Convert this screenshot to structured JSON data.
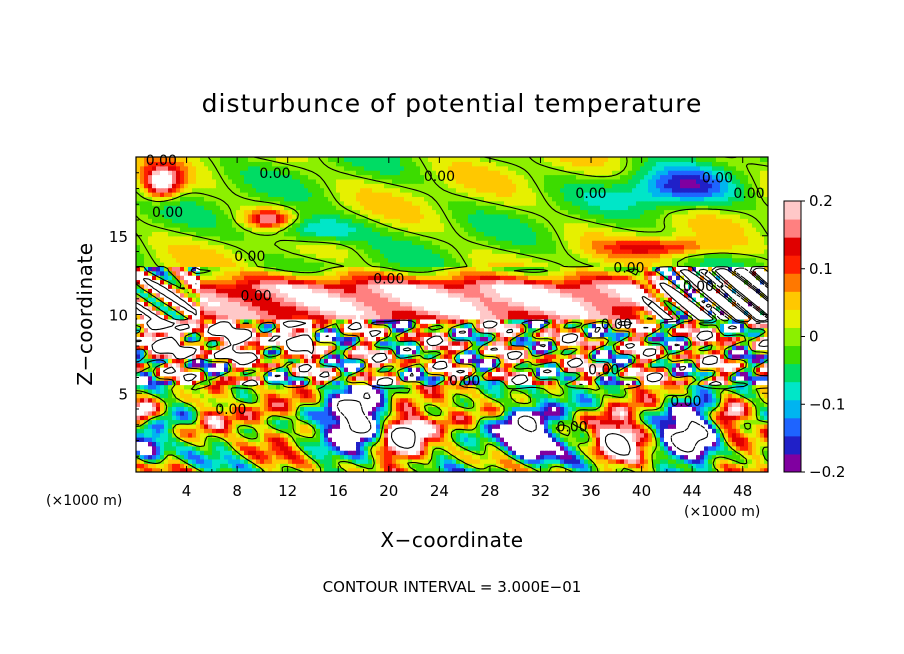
{
  "chart_data": {
    "type": "heatmap",
    "title": "disturbunce of potential temperature",
    "xlabel": "X−coordinate",
    "ylabel": "Z−coordinate",
    "x_unit": "(×1000 m)",
    "y_unit": "(×1000 m)",
    "xlim": [
      0,
      50
    ],
    "ylim": [
      0,
      20
    ],
    "x_ticks": [
      4,
      8,
      12,
      16,
      20,
      24,
      28,
      32,
      36,
      40,
      44,
      48
    ],
    "y_ticks": [
      5,
      10,
      15
    ],
    "colorbar": {
      "range": [
        -0.2,
        0.2
      ],
      "tick_values": [
        0.2,
        0.1,
        0,
        -0.1,
        -0.2
      ],
      "tick_labels": [
        "0.2",
        "0.1",
        "0",
        "−0.1",
        "−0.2"
      ],
      "colors": [
        "#8000a0",
        "#2020c8",
        "#1e64ff",
        "#00b4f0",
        "#00e6c8",
        "#00dc64",
        "#3cdc00",
        "#8cf000",
        "#e6f000",
        "#ffc800",
        "#ff7800",
        "#ff2000",
        "#e00000",
        "#ff8080",
        "#ffc8c8"
      ]
    },
    "contour_interval_text": "CONTOUR INTERVAL = 3.000E−01",
    "contour_label": "0.00",
    "contour_label_positions": [
      {
        "x": 2.0,
        "z": 19.8
      },
      {
        "x": 11.0,
        "z": 19.0
      },
      {
        "x": 24.0,
        "z": 18.8
      },
      {
        "x": 36.0,
        "z": 17.7
      },
      {
        "x": 46.0,
        "z": 18.7
      },
      {
        "x": 48.5,
        "z": 17.7
      },
      {
        "x": 2.5,
        "z": 16.5
      },
      {
        "x": 9.0,
        "z": 13.7
      },
      {
        "x": 20.0,
        "z": 12.3
      },
      {
        "x": 39.0,
        "z": 13.0
      },
      {
        "x": 44.5,
        "z": 11.8
      },
      {
        "x": 9.5,
        "z": 11.2
      },
      {
        "x": 38.0,
        "z": 9.4
      },
      {
        "x": 26.0,
        "z": 5.8
      },
      {
        "x": 37.0,
        "z": 6.5
      },
      {
        "x": 7.5,
        "z": 4.0
      },
      {
        "x": 43.5,
        "z": 4.5
      },
      {
        "x": 34.5,
        "z": 2.9
      }
    ]
  }
}
